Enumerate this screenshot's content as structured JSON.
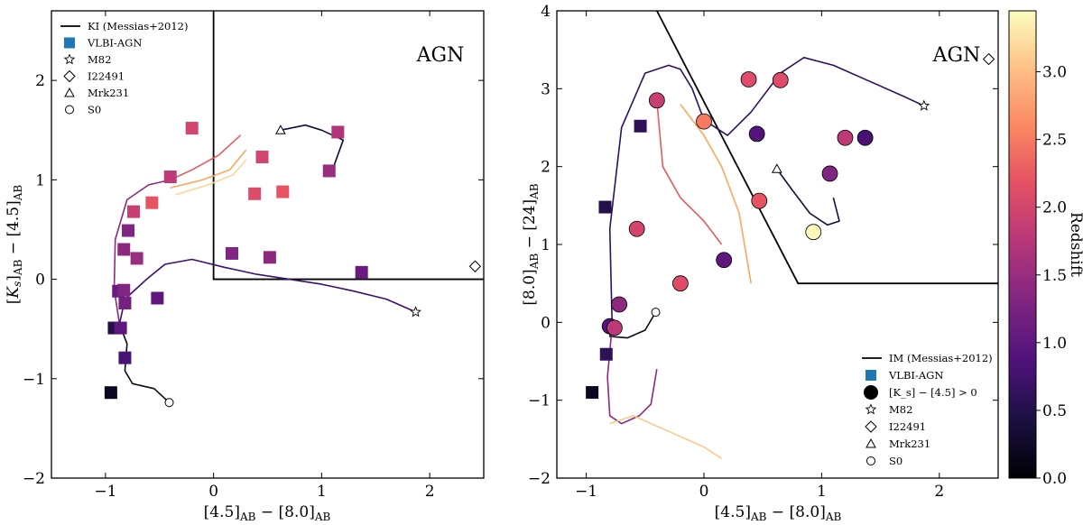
{
  "chart_data": [
    {
      "type": "scatter",
      "title": "",
      "xlabel": "[4.5]_AB − [8.0]_AB",
      "ylabel": "[K_s]_AB − [4.5]_AB",
      "xlim": [
        -1.5,
        2.5
      ],
      "ylim": [
        -2.0,
        2.7
      ],
      "xticks": [
        -1,
        0,
        1,
        2
      ],
      "yticks": [
        -2,
        -1,
        0,
        1,
        2
      ],
      "tick_labels_x": [
        "−1",
        "0",
        "1",
        "2"
      ],
      "tick_labels_y": [
        "−2",
        "−1",
        "0",
        "1",
        "2"
      ],
      "region_label": "AGN",
      "agn_wedge": {
        "x": [
          0,
          0,
          2.5
        ],
        "y": [
          2.7,
          0,
          0
        ]
      },
      "legend": {
        "placement": "top-left",
        "entries": [
          {
            "label": "KI (Messias+2012)",
            "marker": "line"
          },
          {
            "label": "VLBI-AGN",
            "marker": "square"
          },
          {
            "label": "M82",
            "marker": "star"
          },
          {
            "label": "I22491",
            "marker": "diamond"
          },
          {
            "label": "Mrk231",
            "marker": "triangle"
          },
          {
            "label": "S0",
            "marker": "circle"
          }
        ]
      },
      "points": [
        {
          "x": -0.95,
          "y": -1.14,
          "z": 0.2
        },
        {
          "x": -0.82,
          "y": -0.79,
          "z": 0.8
        },
        {
          "x": -0.92,
          "y": -0.49,
          "z": 0.5
        },
        {
          "x": -0.86,
          "y": -0.49,
          "z": 1.0
        },
        {
          "x": -0.82,
          "y": -0.24,
          "z": 1.2
        },
        {
          "x": -0.88,
          "y": -0.12,
          "z": 1.1
        },
        {
          "x": -0.83,
          "y": -0.11,
          "z": 1.3
        },
        {
          "x": -0.52,
          "y": -0.19,
          "z": 1.0
        },
        {
          "x": -0.71,
          "y": 0.21,
          "z": 1.5
        },
        {
          "x": -0.83,
          "y": 0.3,
          "z": 1.4
        },
        {
          "x": -0.79,
          "y": 0.49,
          "z": 1.3
        },
        {
          "x": -0.74,
          "y": 0.68,
          "z": 1.9
        },
        {
          "x": -0.57,
          "y": 0.77,
          "z": 2.2
        },
        {
          "x": -0.4,
          "y": 1.03,
          "z": 1.8
        },
        {
          "x": -0.2,
          "y": 1.52,
          "z": 2.0
        },
        {
          "x": 0.17,
          "y": 0.26,
          "z": 1.3
        },
        {
          "x": 0.38,
          "y": 0.86,
          "z": 2.1
        },
        {
          "x": 0.45,
          "y": 1.23,
          "z": 2.0
        },
        {
          "x": 0.52,
          "y": 0.22,
          "z": 1.4
        },
        {
          "x": 0.64,
          "y": 0.88,
          "z": 2.2
        },
        {
          "x": 1.07,
          "y": 1.09,
          "z": 1.5
        },
        {
          "x": 1.15,
          "y": 1.48,
          "z": 1.7
        },
        {
          "x": 1.37,
          "y": 0.07,
          "z": 1.1
        }
      ],
      "templates": {
        "M82": {
          "x": 1.87,
          "y": -0.33
        },
        "I22491": {
          "x": 2.42,
          "y": 0.13
        },
        "Mrk231": {
          "x": 0.62,
          "y": 1.5
        },
        "S0": {
          "x": -0.41,
          "y": -1.24
        }
      },
      "tracks": [
        {
          "color": "#0a0a1a",
          "x": [
            -0.41,
            -0.55,
            -0.75,
            -0.82,
            -0.8,
            -0.87
          ],
          "y": [
            -1.24,
            -1.1,
            -1.05,
            -0.92,
            -0.65,
            -0.45
          ]
        },
        {
          "color": "#3b1070",
          "x": [
            -0.87,
            -0.82,
            -0.62,
            -0.45,
            -0.2,
            0.1,
            0.4,
            0.7,
            1.0,
            1.3,
            1.6,
            1.87
          ],
          "y": [
            -0.45,
            -0.2,
            0.0,
            0.15,
            0.2,
            0.12,
            0.05,
            0.0,
            -0.05,
            -0.12,
            -0.2,
            -0.33
          ]
        },
        {
          "color": "#8c2981",
          "x": [
            -0.87,
            -0.92,
            -0.91,
            -0.8,
            -0.6,
            -0.4
          ],
          "y": [
            -0.45,
            -0.1,
            0.4,
            0.8,
            0.95,
            1.0
          ]
        },
        {
          "color": "#e45a5e",
          "x": [
            -0.4,
            -0.2,
            0.05,
            0.25
          ],
          "y": [
            1.0,
            1.1,
            1.25,
            1.45
          ]
        },
        {
          "color": "#fca65e",
          "x": [
            -0.4,
            -0.1,
            0.15,
            0.3
          ],
          "y": [
            0.92,
            1.0,
            1.1,
            1.3
          ]
        },
        {
          "color": "#fcd59a",
          "x": [
            -0.35,
            -0.05,
            0.18,
            0.3
          ],
          "y": [
            0.85,
            0.95,
            1.05,
            1.2
          ]
        },
        {
          "color": "#120d35",
          "x": [
            0.62,
            0.85,
            1.0,
            1.1,
            1.2,
            1.15,
            1.1
          ],
          "y": [
            1.5,
            1.55,
            1.5,
            1.45,
            1.4,
            1.25,
            1.1
          ]
        }
      ]
    },
    {
      "type": "scatter",
      "title": "",
      "xlabel": "[4.5]_AB − [8.0]_AB",
      "ylabel": "[8.0]_AB − [24]_AB",
      "xlim": [
        -1.25,
        2.5
      ],
      "ylim": [
        -2.0,
        4.0
      ],
      "xticks": [
        -1,
        0,
        1,
        2
      ],
      "yticks": [
        -2,
        -1,
        0,
        1,
        2,
        3,
        4
      ],
      "tick_labels_x": [
        "−1",
        "0",
        "1",
        "2"
      ],
      "tick_labels_y": [
        "−2",
        "−1",
        "0",
        "1",
        "2",
        "3",
        "4"
      ],
      "region_label": "AGN",
      "agn_wedge": {
        "x": [
          -0.4,
          0.8,
          2.5
        ],
        "y": [
          4.0,
          0.5,
          0.5
        ]
      },
      "legend": {
        "placement": "bottom-right",
        "entries": [
          {
            "label": "IM (Messias+2012)",
            "marker": "line"
          },
          {
            "label": "VLBI-AGN",
            "marker": "square"
          },
          {
            "label": "[K_s] − [4.5] > 0",
            "marker": "big-circle"
          },
          {
            "label": "M82",
            "marker": "star"
          },
          {
            "label": "I22491",
            "marker": "diamond"
          },
          {
            "label": "Mrk231",
            "marker": "triangle"
          },
          {
            "label": "S0",
            "marker": "circle"
          }
        ]
      },
      "squares": [
        {
          "x": -0.95,
          "y": -0.9,
          "z": 0.2
        },
        {
          "x": -0.83,
          "y": -0.41,
          "z": 0.6
        },
        {
          "x": -0.84,
          "y": 1.48,
          "z": 0.5
        },
        {
          "x": -0.54,
          "y": 2.52,
          "z": 0.6
        }
      ],
      "circles": [
        {
          "x": -0.8,
          "y": -0.05,
          "z": 0.9
        },
        {
          "x": -0.76,
          "y": -0.07,
          "z": 1.8
        },
        {
          "x": -0.72,
          "y": 0.23,
          "z": 1.4
        },
        {
          "x": -0.57,
          "y": 1.2,
          "z": 2.0
        },
        {
          "x": -0.4,
          "y": 2.85,
          "z": 1.9
        },
        {
          "x": -0.2,
          "y": 0.5,
          "z": 2.1
        },
        {
          "x": 0.0,
          "y": 2.58,
          "z": 2.5
        },
        {
          "x": 0.17,
          "y": 0.8,
          "z": 1.0
        },
        {
          "x": 0.38,
          "y": 3.12,
          "z": 2.1
        },
        {
          "x": 0.45,
          "y": 2.42,
          "z": 0.9
        },
        {
          "x": 0.47,
          "y": 1.56,
          "z": 2.2
        },
        {
          "x": 0.65,
          "y": 3.11,
          "z": 2.1
        },
        {
          "x": 0.93,
          "y": 1.16,
          "z": 3.4
        },
        {
          "x": 1.07,
          "y": 1.91,
          "z": 1.3
        },
        {
          "x": 1.2,
          "y": 2.37,
          "z": 1.8
        },
        {
          "x": 1.37,
          "y": 2.37,
          "z": 0.8
        }
      ],
      "templates": {
        "M82": {
          "x": 1.87,
          "y": 2.78
        },
        "I22491": {
          "x": 2.42,
          "y": 3.38
        },
        "Mrk231": {
          "x": 0.62,
          "y": 1.97
        },
        "S0": {
          "x": -0.41,
          "y": 0.13
        }
      },
      "tracks": [
        {
          "color": "#0a0a1a",
          "x": [
            -0.41,
            -0.5,
            -0.65,
            -0.8,
            -0.78
          ],
          "y": [
            0.13,
            -0.1,
            -0.2,
            -0.18,
            -0.05
          ]
        },
        {
          "color": "#2d1160",
          "x": [
            -0.78,
            -0.8,
            -0.7,
            -0.5,
            -0.3,
            -0.2,
            -0.1,
            0.0,
            0.2,
            0.4,
            0.65,
            0.85,
            1.1,
            1.4,
            1.7,
            1.87
          ],
          "y": [
            -0.05,
            1.2,
            2.5,
            3.2,
            3.3,
            3.25,
            3.0,
            2.6,
            2.4,
            2.7,
            3.2,
            3.4,
            3.3,
            3.1,
            2.9,
            2.78
          ]
        },
        {
          "color": "#8c2981",
          "x": [
            -0.78,
            -0.82,
            -0.8,
            -0.7,
            -0.55,
            -0.45,
            -0.4
          ],
          "y": [
            -0.05,
            -0.7,
            -1.2,
            -1.3,
            -1.2,
            -1.05,
            -0.6
          ]
        },
        {
          "color": "#e45a5e",
          "x": [
            -0.4,
            -0.35,
            -0.2,
            0.0,
            0.15
          ],
          "y": [
            2.85,
            2.0,
            1.6,
            1.3,
            1.0
          ]
        },
        {
          "color": "#fca65e",
          "x": [
            -0.2,
            0.0,
            0.15,
            0.3,
            0.4
          ],
          "y": [
            2.8,
            2.4,
            2.0,
            1.4,
            0.5
          ]
        },
        {
          "color": "#f7c98a",
          "x": [
            -0.8,
            -0.6,
            -0.3,
            0.0,
            0.15
          ],
          "y": [
            -1.3,
            -1.2,
            -1.4,
            -1.6,
            -1.75
          ]
        },
        {
          "color": "#120d35",
          "x": [
            0.62,
            0.75,
            0.9,
            1.05,
            1.15,
            1.1
          ],
          "y": [
            1.97,
            1.7,
            1.4,
            1.25,
            1.3,
            1.6
          ]
        }
      ]
    }
  ],
  "colorbar": {
    "label": "Redshift",
    "min": 0.0,
    "max": 3.45,
    "ticks": [
      0.0,
      0.5,
      1.0,
      1.5,
      2.0,
      2.5,
      3.0
    ],
    "tick_labels": [
      "0.0",
      "0.5",
      "1.0",
      "1.5",
      "2.0",
      "2.5",
      "3.0"
    ]
  }
}
